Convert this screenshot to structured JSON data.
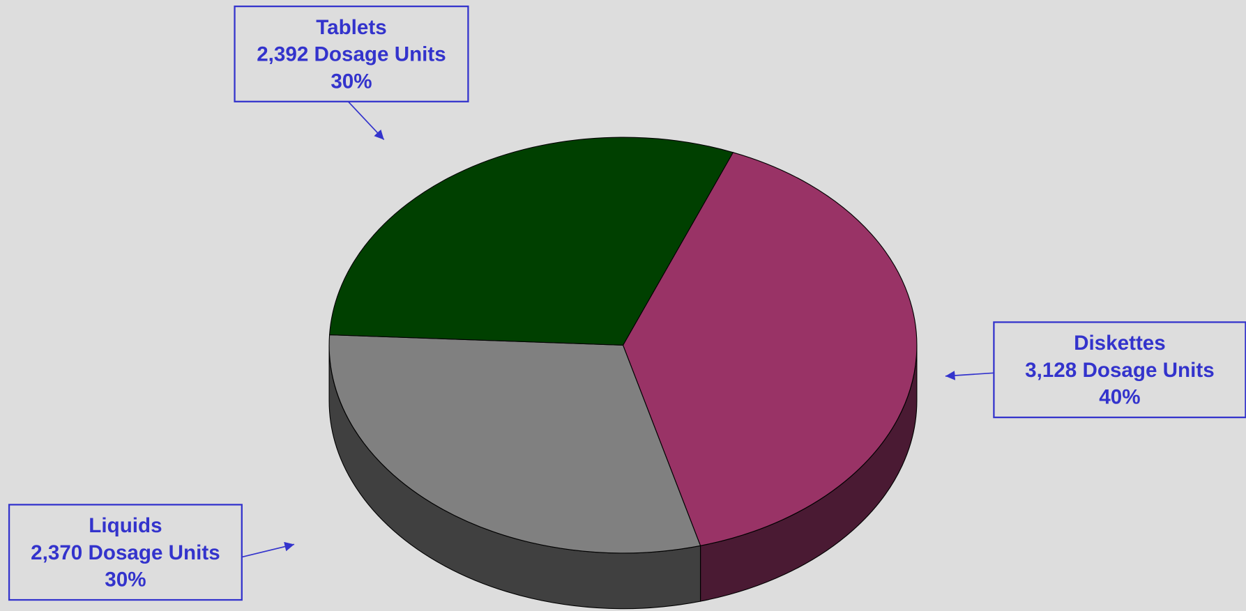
{
  "chart_data": {
    "type": "pie",
    "categories": [
      "Diskettes",
      "Liquids",
      "Tablets"
    ],
    "values": [
      3128,
      2370,
      2392
    ],
    "value_labels": [
      "3,128 Dosage Units",
      "2,370 Dosage Units",
      "2,392 Dosage Units"
    ],
    "percents": [
      40,
      30,
      30
    ],
    "percent_labels": [
      "40%",
      "30%",
      "30%"
    ],
    "colors": [
      "#993366",
      "#808080",
      "#004000"
    ],
    "side_colors": [
      "#4a1a33",
      "#404040",
      "#002200"
    ],
    "label_color": "#3333cc"
  }
}
